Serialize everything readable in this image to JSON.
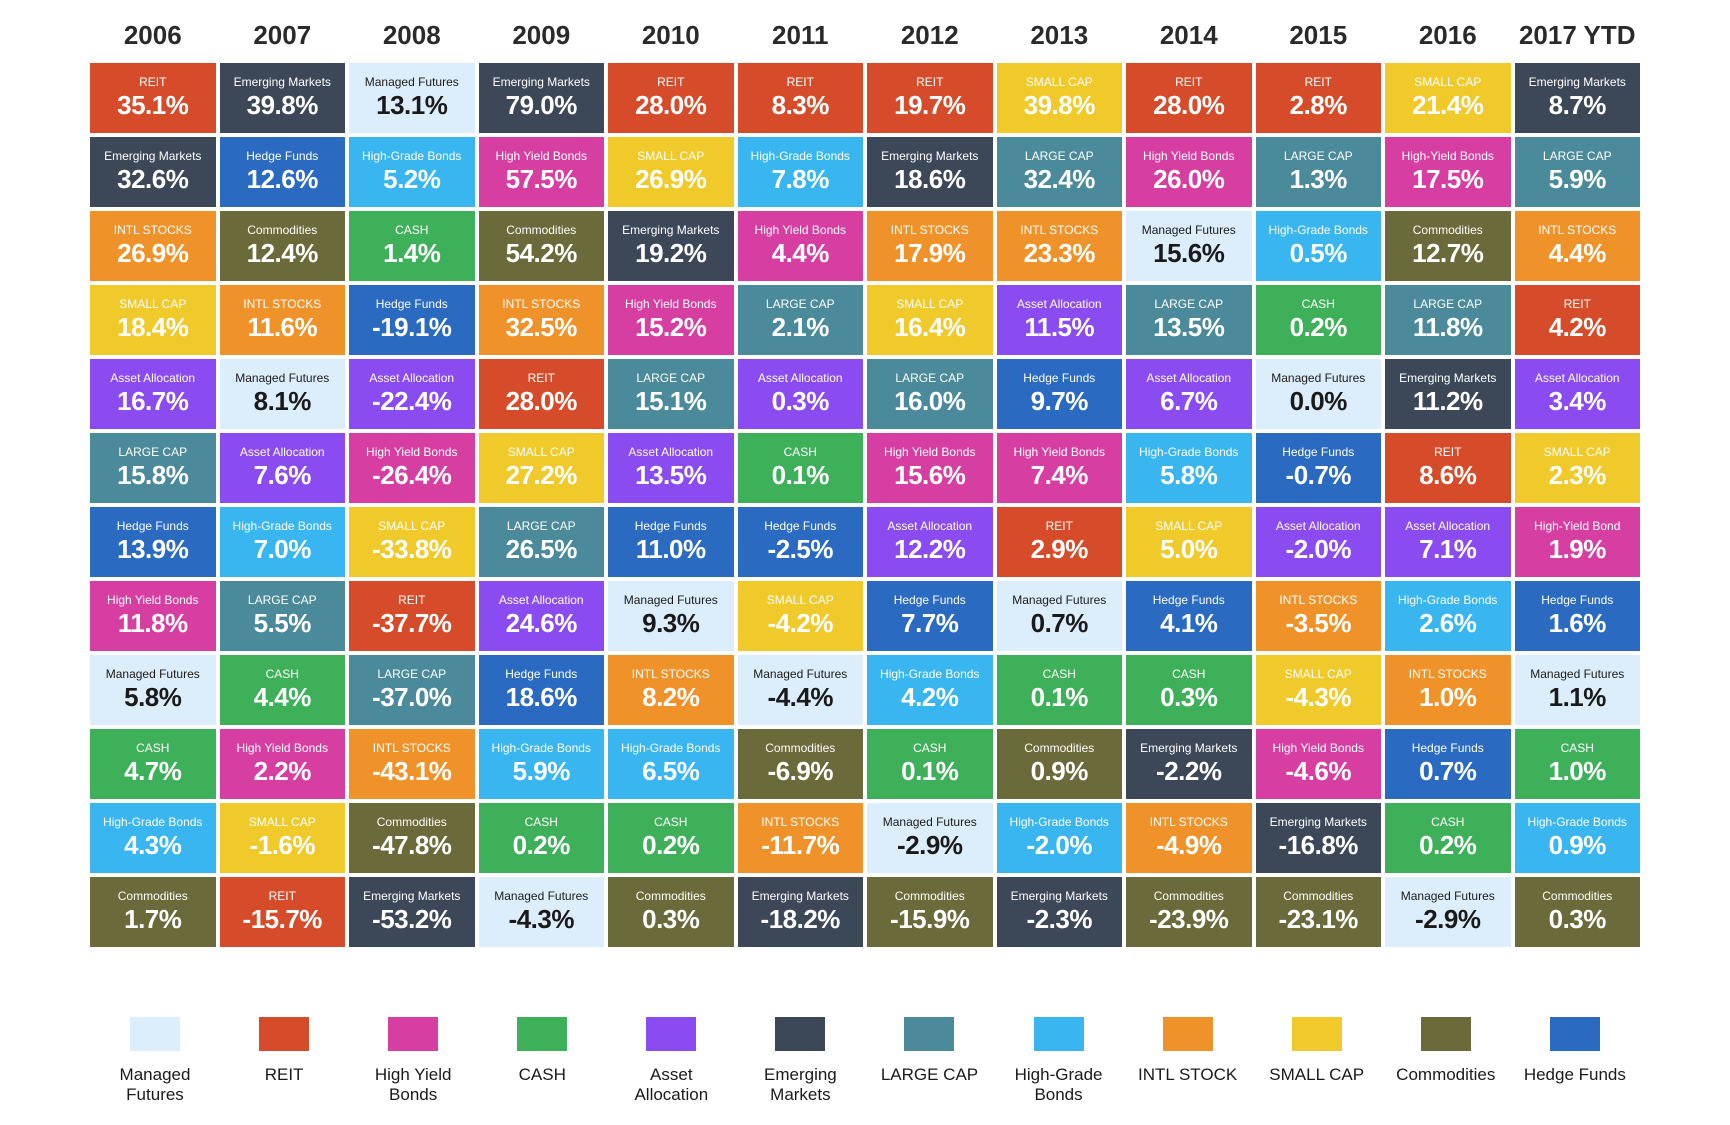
{
  "colors": {
    "managed_futures": "#dceefc",
    "reit": "#d64c2a",
    "high_yield_bonds": "#d63fa1",
    "cash": "#3fb05a",
    "asset_allocation": "#8a4cf0",
    "emerging_markets": "#3c4858",
    "large_cap": "#4a8a9a",
    "high_grade_bonds": "#39b6f0",
    "intl_stock": "#f0922a",
    "small_cap": "#f0c92a",
    "commodities": "#6a6a3a",
    "hedge_funds": "#2a6ac0"
  },
  "dark_text_classes": [
    "managed_futures"
  ],
  "years": [
    "2006",
    "2007",
    "2008",
    "2009",
    "2010",
    "2011",
    "2012",
    "2013",
    "2014",
    "2015",
    "2016",
    "2017 YTD"
  ],
  "legend": [
    {
      "key": "managed_futures",
      "label": "Managed Futures"
    },
    {
      "key": "reit",
      "label": "REIT"
    },
    {
      "key": "high_yield_bonds",
      "label": "High Yield Bonds"
    },
    {
      "key": "cash",
      "label": "CASH"
    },
    {
      "key": "asset_allocation",
      "label": "Asset Allocation"
    },
    {
      "key": "emerging_markets",
      "label": "Emerging Markets"
    },
    {
      "key": "large_cap",
      "label": "LARGE CAP"
    },
    {
      "key": "high_grade_bonds",
      "label": "High-Grade Bonds"
    },
    {
      "key": "intl_stock",
      "label": "INTL STOCK"
    },
    {
      "key": "small_cap",
      "label": "SMALL CAP"
    },
    {
      "key": "commodities",
      "label": "Commodities"
    },
    {
      "key": "hedge_funds",
      "label": "Hedge Funds"
    }
  ],
  "columns": [
    [
      {
        "c": "reit",
        "l": "REIT",
        "v": "35.1%"
      },
      {
        "c": "emerging_markets",
        "l": "Emerging Markets",
        "v": "32.6%"
      },
      {
        "c": "intl_stock",
        "l": "INTL STOCKS",
        "v": "26.9%"
      },
      {
        "c": "small_cap",
        "l": "SMALL CAP",
        "v": "18.4%"
      },
      {
        "c": "asset_allocation",
        "l": "Asset Allocation",
        "v": "16.7%"
      },
      {
        "c": "large_cap",
        "l": "LARGE CAP",
        "v": "15.8%"
      },
      {
        "c": "hedge_funds",
        "l": "Hedge Funds",
        "v": "13.9%"
      },
      {
        "c": "high_yield_bonds",
        "l": "High Yield Bonds",
        "v": "11.8%"
      },
      {
        "c": "managed_futures",
        "l": "Managed Futures",
        "v": "5.8%"
      },
      {
        "c": "cash",
        "l": "CASH",
        "v": "4.7%"
      },
      {
        "c": "high_grade_bonds",
        "l": "High-Grade Bonds",
        "v": "4.3%"
      },
      {
        "c": "commodities",
        "l": "Commodities",
        "v": "1.7%"
      }
    ],
    [
      {
        "c": "emerging_markets",
        "l": "Emerging Markets",
        "v": "39.8%"
      },
      {
        "c": "hedge_funds",
        "l": "Hedge Funds",
        "v": "12.6%"
      },
      {
        "c": "commodities",
        "l": "Commodities",
        "v": "12.4%"
      },
      {
        "c": "intl_stock",
        "l": "INTL STOCKS",
        "v": "11.6%"
      },
      {
        "c": "managed_futures",
        "l": "Managed Futures",
        "v": "8.1%"
      },
      {
        "c": "asset_allocation",
        "l": "Asset Allocation",
        "v": "7.6%"
      },
      {
        "c": "high_grade_bonds",
        "l": "High-Grade Bonds",
        "v": "7.0%"
      },
      {
        "c": "large_cap",
        "l": "LARGE CAP",
        "v": "5.5%"
      },
      {
        "c": "cash",
        "l": "CASH",
        "v": "4.4%"
      },
      {
        "c": "high_yield_bonds",
        "l": "High Yield Bonds",
        "v": "2.2%"
      },
      {
        "c": "small_cap",
        "l": "SMALL CAP",
        "v": "-1.6%"
      },
      {
        "c": "reit",
        "l": "REIT",
        "v": "-15.7%"
      }
    ],
    [
      {
        "c": "managed_futures",
        "l": "Managed Futures",
        "v": "13.1%"
      },
      {
        "c": "high_grade_bonds",
        "l": "High-Grade Bonds",
        "v": "5.2%"
      },
      {
        "c": "cash",
        "l": "CASH",
        "v": "1.4%"
      },
      {
        "c": "hedge_funds",
        "l": "Hedge Funds",
        "v": "-19.1%"
      },
      {
        "c": "asset_allocation",
        "l": "Asset Allocation",
        "v": "-22.4%"
      },
      {
        "c": "high_yield_bonds",
        "l": "High Yield Bonds",
        "v": "-26.4%"
      },
      {
        "c": "small_cap",
        "l": "SMALL CAP",
        "v": "-33.8%"
      },
      {
        "c": "reit",
        "l": "REIT",
        "v": "-37.7%"
      },
      {
        "c": "large_cap",
        "l": "LARGE CAP",
        "v": "-37.0%"
      },
      {
        "c": "intl_stock",
        "l": "INTL STOCKS",
        "v": "-43.1%"
      },
      {
        "c": "commodities",
        "l": "Commodities",
        "v": "-47.8%"
      },
      {
        "c": "emerging_markets",
        "l": "Emerging Markets",
        "v": "-53.2%"
      }
    ],
    [
      {
        "c": "emerging_markets",
        "l": "Emerging Markets",
        "v": "79.0%"
      },
      {
        "c": "high_yield_bonds",
        "l": "High Yield Bonds",
        "v": "57.5%"
      },
      {
        "c": "commodities",
        "l": "Commodities",
        "v": "54.2%"
      },
      {
        "c": "intl_stock",
        "l": "INTL STOCKS",
        "v": "32.5%"
      },
      {
        "c": "reit",
        "l": "REIT",
        "v": "28.0%"
      },
      {
        "c": "small_cap",
        "l": "SMALL CAP",
        "v": "27.2%"
      },
      {
        "c": "large_cap",
        "l": "LARGE CAP",
        "v": "26.5%"
      },
      {
        "c": "asset_allocation",
        "l": "Asset Allocation",
        "v": "24.6%"
      },
      {
        "c": "hedge_funds",
        "l": "Hedge Funds",
        "v": "18.6%"
      },
      {
        "c": "high_grade_bonds",
        "l": "High-Grade Bonds",
        "v": "5.9%"
      },
      {
        "c": "cash",
        "l": "CASH",
        "v": "0.2%"
      },
      {
        "c": "managed_futures",
        "l": "Managed Futures",
        "v": "-4.3%"
      }
    ],
    [
      {
        "c": "reit",
        "l": "REIT",
        "v": "28.0%"
      },
      {
        "c": "small_cap",
        "l": "SMALL CAP",
        "v": "26.9%"
      },
      {
        "c": "emerging_markets",
        "l": "Emerging Markets",
        "v": "19.2%"
      },
      {
        "c": "high_yield_bonds",
        "l": "High Yield Bonds",
        "v": "15.2%"
      },
      {
        "c": "large_cap",
        "l": "LARGE CAP",
        "v": "15.1%"
      },
      {
        "c": "asset_allocation",
        "l": "Asset Allocation",
        "v": "13.5%"
      },
      {
        "c": "hedge_funds",
        "l": "Hedge Funds",
        "v": "11.0%"
      },
      {
        "c": "managed_futures",
        "l": "Managed Futures",
        "v": "9.3%"
      },
      {
        "c": "intl_stock",
        "l": "INTL STOCKS",
        "v": "8.2%"
      },
      {
        "c": "high_grade_bonds",
        "l": "High-Grade Bonds",
        "v": "6.5%"
      },
      {
        "c": "cash",
        "l": "CASH",
        "v": "0.2%"
      },
      {
        "c": "commodities",
        "l": "Commodities",
        "v": "0.3%"
      }
    ],
    [
      {
        "c": "reit",
        "l": "REIT",
        "v": "8.3%"
      },
      {
        "c": "high_grade_bonds",
        "l": "High-Grade Bonds",
        "v": "7.8%"
      },
      {
        "c": "high_yield_bonds",
        "l": "High Yield Bonds",
        "v": "4.4%"
      },
      {
        "c": "large_cap",
        "l": "LARGE CAP",
        "v": "2.1%"
      },
      {
        "c": "asset_allocation",
        "l": "Asset Allocation",
        "v": "0.3%"
      },
      {
        "c": "cash",
        "l": "CASH",
        "v": "0.1%"
      },
      {
        "c": "hedge_funds",
        "l": "Hedge Funds",
        "v": "-2.5%"
      },
      {
        "c": "small_cap",
        "l": "SMALL CAP",
        "v": "-4.2%"
      },
      {
        "c": "managed_futures",
        "l": "Managed Futures",
        "v": "-4.4%"
      },
      {
        "c": "commodities",
        "l": "Commodities",
        "v": "-6.9%"
      },
      {
        "c": "intl_stock",
        "l": "INTL STOCKS",
        "v": "-11.7%"
      },
      {
        "c": "emerging_markets",
        "l": "Emerging Markets",
        "v": "-18.2%"
      }
    ],
    [
      {
        "c": "reit",
        "l": "REIT",
        "v": "19.7%"
      },
      {
        "c": "emerging_markets",
        "l": "Emerging Markets",
        "v": "18.6%"
      },
      {
        "c": "intl_stock",
        "l": "INTL STOCKS",
        "v": "17.9%"
      },
      {
        "c": "small_cap",
        "l": "SMALL CAP",
        "v": "16.4%"
      },
      {
        "c": "large_cap",
        "l": "LARGE CAP",
        "v": "16.0%"
      },
      {
        "c": "high_yield_bonds",
        "l": "High Yield Bonds",
        "v": "15.6%"
      },
      {
        "c": "asset_allocation",
        "l": "Asset Allocation",
        "v": "12.2%"
      },
      {
        "c": "hedge_funds",
        "l": "Hedge Funds",
        "v": "7.7%"
      },
      {
        "c": "high_grade_bonds",
        "l": "High-Grade Bonds",
        "v": "4.2%"
      },
      {
        "c": "cash",
        "l": "CASH",
        "v": "0.1%"
      },
      {
        "c": "managed_futures",
        "l": "Managed Futures",
        "v": "-2.9%"
      },
      {
        "c": "commodities",
        "l": "Commodities",
        "v": "-15.9%"
      }
    ],
    [
      {
        "c": "small_cap",
        "l": "SMALL CAP",
        "v": "39.8%"
      },
      {
        "c": "large_cap",
        "l": "LARGE CAP",
        "v": "32.4%"
      },
      {
        "c": "intl_stock",
        "l": "INTL STOCKS",
        "v": "23.3%"
      },
      {
        "c": "asset_allocation",
        "l": "Asset Allocation",
        "v": "11.5%"
      },
      {
        "c": "hedge_funds",
        "l": "Hedge Funds",
        "v": "9.7%"
      },
      {
        "c": "high_yield_bonds",
        "l": "High Yield Bonds",
        "v": "7.4%"
      },
      {
        "c": "reit",
        "l": "REIT",
        "v": "2.9%"
      },
      {
        "c": "managed_futures",
        "l": "Managed Futures",
        "v": "0.7%"
      },
      {
        "c": "cash",
        "l": "CASH",
        "v": "0.1%"
      },
      {
        "c": "commodities",
        "l": "Commodities",
        "v": "0.9%"
      },
      {
        "c": "high_grade_bonds",
        "l": "High-Grade Bonds",
        "v": "-2.0%"
      },
      {
        "c": "emerging_markets",
        "l": "Emerging Markets",
        "v": "-2.3%"
      }
    ],
    [
      {
        "c": "reit",
        "l": "REIT",
        "v": "28.0%"
      },
      {
        "c": "high_yield_bonds",
        "l": "High Yield Bonds",
        "v": "26.0%"
      },
      {
        "c": "managed_futures",
        "l": "Managed Futures",
        "v": "15.6%"
      },
      {
        "c": "large_cap",
        "l": "LARGE CAP",
        "v": "13.5%"
      },
      {
        "c": "asset_allocation",
        "l": "Asset Allocation",
        "v": "6.7%"
      },
      {
        "c": "high_grade_bonds",
        "l": "High-Grade Bonds",
        "v": "5.8%"
      },
      {
        "c": "small_cap",
        "l": "SMALL CAP",
        "v": "5.0%"
      },
      {
        "c": "hedge_funds",
        "l": "Hedge Funds",
        "v": "4.1%"
      },
      {
        "c": "cash",
        "l": "CASH",
        "v": "0.3%"
      },
      {
        "c": "emerging_markets",
        "l": "Emerging Markets",
        "v": "-2.2%"
      },
      {
        "c": "intl_stock",
        "l": "INTL STOCKS",
        "v": "-4.9%"
      },
      {
        "c": "commodities",
        "l": "Commodities",
        "v": "-23.9%"
      }
    ],
    [
      {
        "c": "reit",
        "l": "REIT",
        "v": "2.8%"
      },
      {
        "c": "large_cap",
        "l": "LARGE CAP",
        "v": "1.3%"
      },
      {
        "c": "high_grade_bonds",
        "l": "High-Grade Bonds",
        "v": "0.5%"
      },
      {
        "c": "cash",
        "l": "CASH",
        "v": "0.2%"
      },
      {
        "c": "managed_futures",
        "l": "Managed Futures",
        "v": "0.0%"
      },
      {
        "c": "hedge_funds",
        "l": "Hedge Funds",
        "v": "-0.7%"
      },
      {
        "c": "asset_allocation",
        "l": "Asset Allocation",
        "v": "-2.0%"
      },
      {
        "c": "intl_stock",
        "l": "INTL STOCKS",
        "v": "-3.5%"
      },
      {
        "c": "small_cap",
        "l": "SMALL CAP",
        "v": "-4.3%"
      },
      {
        "c": "high_yield_bonds",
        "l": "High Yield Bonds",
        "v": "-4.6%"
      },
      {
        "c": "emerging_markets",
        "l": "Emerging Markets",
        "v": "-16.8%"
      },
      {
        "c": "commodities",
        "l": "Commodities",
        "v": "-23.1%"
      }
    ],
    [
      {
        "c": "small_cap",
        "l": "SMALL CAP",
        "v": "21.4%"
      },
      {
        "c": "high_yield_bonds",
        "l": "High-Yield Bonds",
        "v": "17.5%"
      },
      {
        "c": "commodities",
        "l": "Commodities",
        "v": "12.7%"
      },
      {
        "c": "large_cap",
        "l": "LARGE CAP",
        "v": "11.8%"
      },
      {
        "c": "emerging_markets",
        "l": "Emerging Markets",
        "v": "11.2%"
      },
      {
        "c": "reit",
        "l": "REIT",
        "v": "8.6%"
      },
      {
        "c": "asset_allocation",
        "l": "Asset Allocation",
        "v": "7.1%"
      },
      {
        "c": "high_grade_bonds",
        "l": "High-Grade Bonds",
        "v": "2.6%"
      },
      {
        "c": "intl_stock",
        "l": "INTL STOCKS",
        "v": "1.0%"
      },
      {
        "c": "hedge_funds",
        "l": "Hedge Funds",
        "v": "0.7%"
      },
      {
        "c": "cash",
        "l": "CASH",
        "v": "0.2%"
      },
      {
        "c": "managed_futures",
        "l": "Managed Futures",
        "v": "-2.9%"
      }
    ],
    [
      {
        "c": "emerging_markets",
        "l": "Emerging Markets",
        "v": "8.7%"
      },
      {
        "c": "large_cap",
        "l": "LARGE CAP",
        "v": "5.9%"
      },
      {
        "c": "intl_stock",
        "l": "INTL STOCKS",
        "v": "4.4%"
      },
      {
        "c": "reit",
        "l": "REIT",
        "v": "4.2%"
      },
      {
        "c": "asset_allocation",
        "l": "Asset Allocation",
        "v": "3.4%"
      },
      {
        "c": "small_cap",
        "l": "SMALL CAP",
        "v": "2.3%"
      },
      {
        "c": "high_yield_bonds",
        "l": "High-Yield Bond",
        "v": "1.9%"
      },
      {
        "c": "hedge_funds",
        "l": "Hedge Funds",
        "v": "1.6%"
      },
      {
        "c": "managed_futures",
        "l": "Managed Futures",
        "v": "1.1%"
      },
      {
        "c": "cash",
        "l": "CASH",
        "v": "1.0%"
      },
      {
        "c": "high_grade_bonds",
        "l": "High-Grade Bonds",
        "v": "0.9%"
      },
      {
        "c": "commodities",
        "l": "Commodities",
        "v": "0.3%"
      }
    ]
  ]
}
